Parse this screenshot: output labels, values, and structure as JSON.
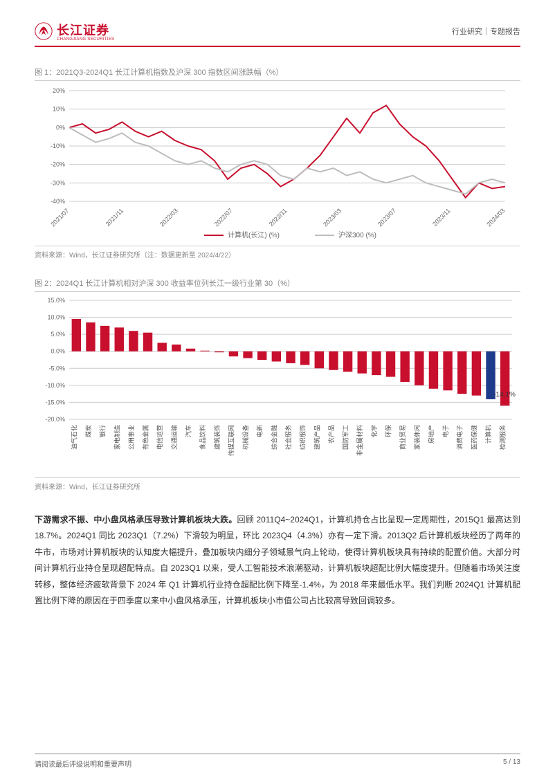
{
  "header": {
    "logo_cn": "长江证券",
    "logo_en": "CHANGJIANG SECURITIES",
    "right_text": "行业研究｜专题报告"
  },
  "chart1": {
    "caption": "图 1：2021Q3-2024Q1 长江计算机指数及沪深 300 指数区间涨跌幅（%）",
    "type": "line",
    "xlim": [
      0,
      33
    ],
    "ylim": [
      -40,
      20
    ],
    "ytick_step": 10,
    "grid_color": "#cccccc",
    "background_color": "#ffffff",
    "x_labels": [
      "2021/07",
      "2021/11",
      "2022/03",
      "2022/07",
      "2022/11",
      "2023/03",
      "2023/07",
      "2023/11",
      "2024/03"
    ],
    "x_label_rotation": -45,
    "label_fontsize": 9,
    "line_width": 2,
    "series": [
      {
        "name": "计算机(长江) (%)",
        "color": "#c8102e",
        "data": [
          0,
          2,
          -3,
          -1,
          3,
          -2,
          -5,
          -2,
          -7,
          -10,
          -12,
          -18,
          -28,
          -22,
          -20,
          -25,
          -32,
          -28,
          -22,
          -15,
          -5,
          5,
          -3,
          8,
          12,
          2,
          -5,
          -10,
          -18,
          -28,
          -38,
          -30,
          -33,
          -32
        ]
      },
      {
        "name": "沪深300 (%)",
        "color": "#bdbdbd",
        "data": [
          0,
          -4,
          -8,
          -6,
          -3,
          -8,
          -10,
          -14,
          -18,
          -20,
          -18,
          -22,
          -24,
          -20,
          -18,
          -20,
          -26,
          -28,
          -22,
          -24,
          -22,
          -26,
          -24,
          -28,
          -30,
          -28,
          -26,
          -30,
          -32,
          -34,
          -36,
          -30,
          -28,
          -30
        ]
      }
    ],
    "source": "资料来源：Wind，长江证券研究所（注：数据更新至 2024/4/22）"
  },
  "chart2": {
    "caption": "图 2：2024Q1 长江计算机相对沪深 300 收益率位列长江一级行业第 30（%）",
    "type": "bar",
    "ylim": [
      -20,
      15
    ],
    "ytick_step": 5,
    "grid_color": "#cccccc",
    "background_color": "#ffffff",
    "bar_color": "#c8102e",
    "highlight_color": "#1e3a8a",
    "highlight_index": 29,
    "highlight_label": "-14.1%",
    "bar_width": 0.65,
    "label_fontsize": 9,
    "x_label_rotation": -90,
    "categories": [
      "油气石化",
      "煤炭",
      "银行",
      "家电制造",
      "公用事业",
      "有色金属",
      "电信运营",
      "交通运输",
      "汽车",
      "食品饮料",
      "建筑装饰",
      "传媒互联网",
      "机械设备",
      "电新",
      "综合金融",
      "社会服务",
      "纺织服饰",
      "建筑产品",
      "农产品",
      "国防军工",
      "非金属材料",
      "化学",
      "环保",
      "商业贸易",
      "家装休闲",
      "房地产",
      "电子",
      "消费电子",
      "医药保健",
      "计算机",
      "检测服务"
    ],
    "values": [
      9.5,
      8.5,
      7.5,
      7.0,
      6.0,
      5.5,
      2.5,
      2.0,
      0.8,
      0.2,
      -0.3,
      -1.5,
      -2.0,
      -2.5,
      -3.0,
      -3.5,
      -4.0,
      -5.0,
      -5.5,
      -6.0,
      -6.5,
      -7.0,
      -7.5,
      -9.0,
      -10.0,
      -11.0,
      -11.5,
      -12.5,
      -13.0,
      -14.1,
      -16.0
    ],
    "source": "资料来源：Wind，长江证券研究所"
  },
  "body": {
    "lead": "下游需求不振、中小盘风格承压导致计算机板块大跌。",
    "rest": "回顾 2011Q4~2024Q1，计算机持仓占比呈现一定周期性，2015Q1 最高达到 18.7%。2024Q1 同比 2023Q1（7.2%）下滑较为明显，环比 2023Q4（4.3%）亦有一定下滑。2013Q2 后计算机板块经历了两年的牛市，市场对计算机板块的认知度大幅提升，叠加板块内细分子领域景气向上轮动，使得计算机板块具有持续的配置价值。大部分时间计算机行业持仓呈现超配特点。自 2023Q1 以来，受人工智能技术浪潮驱动，计算机板块超配比例大幅度提升。但随着市场关注度转移，整体经济疲软背景下 2024 年 Q1 计算机行业持仓超配比例下降至-1.4%，为 2018 年来最低水平。我们判断 2024Q1 计算机配置比例下降的原因在于四季度以来中小盘风格承压，计算机板块小市值公司占比较高导致回调较多。"
  },
  "footer": {
    "left": "请阅读最后评级说明和重要声明",
    "right": "5 / 13"
  }
}
